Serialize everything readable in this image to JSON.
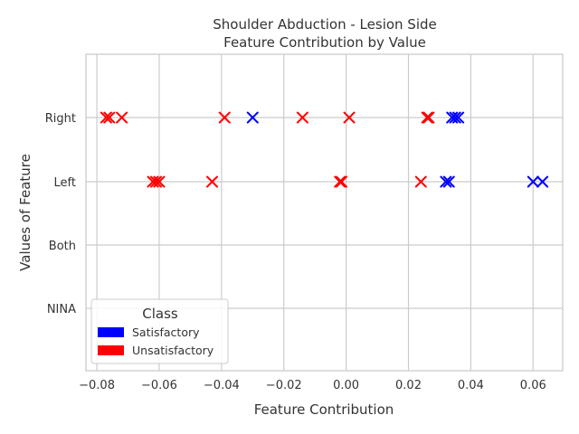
{
  "chart_data": {
    "type": "scatter",
    "title_lines": [
      "Shoulder Abduction - Lesion Side",
      "Feature Contribution by Value"
    ],
    "xlabel": "Feature Contribution",
    "ylabel": "Values of Feature",
    "xlim": [
      -0.0835,
      0.0695
    ],
    "xticks": [
      -0.08,
      -0.06,
      -0.04,
      -0.02,
      0.0,
      0.02,
      0.04,
      0.06
    ],
    "xtick_labels": [
      "−0.08",
      "−0.06",
      "−0.04",
      "−0.02",
      "0.00",
      "0.02",
      "0.04",
      "0.06"
    ],
    "categories": [
      "Right",
      "Left",
      "Both",
      "NINA"
    ],
    "marker": "x",
    "grid": true,
    "legend": {
      "title": "Class",
      "placement": "lower-left",
      "entries": [
        {
          "name": "Satisfactory",
          "color": "#0000ff"
        },
        {
          "name": "Unsatisfactory",
          "color": "#ff0000"
        }
      ]
    },
    "series": [
      {
        "name": "Satisfactory",
        "color": "#0000ff",
        "points": [
          {
            "x": -0.03,
            "y": "Right"
          },
          {
            "x": 0.034,
            "y": "Right"
          },
          {
            "x": 0.035,
            "y": "Right"
          },
          {
            "x": 0.036,
            "y": "Right"
          },
          {
            "x": 0.032,
            "y": "Left"
          },
          {
            "x": 0.033,
            "y": "Left"
          },
          {
            "x": 0.06,
            "y": "Left"
          },
          {
            "x": 0.063,
            "y": "Left"
          }
        ]
      },
      {
        "name": "Unsatisfactory",
        "color": "#ff0000",
        "points": [
          {
            "x": -0.077,
            "y": "Right"
          },
          {
            "x": -0.076,
            "y": "Right"
          },
          {
            "x": -0.072,
            "y": "Right"
          },
          {
            "x": -0.039,
            "y": "Right"
          },
          {
            "x": -0.014,
            "y": "Right"
          },
          {
            "x": 0.001,
            "y": "Right"
          },
          {
            "x": 0.026,
            "y": "Right"
          },
          {
            "x": 0.0265,
            "y": "Right"
          },
          {
            "x": -0.062,
            "y": "Left"
          },
          {
            "x": -0.061,
            "y": "Left"
          },
          {
            "x": -0.06,
            "y": "Left"
          },
          {
            "x": -0.043,
            "y": "Left"
          },
          {
            "x": -0.002,
            "y": "Left"
          },
          {
            "x": -0.0015,
            "y": "Left"
          },
          {
            "x": 0.024,
            "y": "Left"
          }
        ]
      }
    ]
  }
}
